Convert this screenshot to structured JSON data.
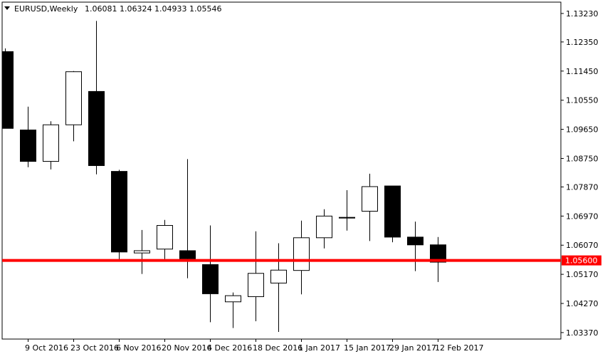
{
  "header": {
    "symbol_label": "EURUSD,Weekly",
    "ohlc_label": "1.06081 1.06324 1.04933 1.05546"
  },
  "colors": {
    "background": "#ffffff",
    "candle_bull_fill": "#ffffff",
    "candle_bear_fill": "#000000",
    "candle_outline": "#000000",
    "level_line": "#ff0000",
    "level_badge_bg": "#ff0000",
    "level_badge_text": "#ffffff",
    "axis_text": "#000000"
  },
  "chart_data": {
    "type": "candlestick",
    "title": "EURUSD,Weekly",
    "ohlc_readout": "1.06081 1.06324 1.04933 1.05546",
    "ylim": [
      1.0317,
      1.1358
    ],
    "y_ticks": [
      "1.13230",
      "1.12350",
      "1.11450",
      "1.10550",
      "1.09650",
      "1.08750",
      "1.07870",
      "1.06970",
      "1.06070",
      "1.05170",
      "1.04270",
      "1.03370"
    ],
    "x_ticks": [
      "9 Oct 2016",
      "23 Oct 2016",
      "6 Nov 2016",
      "20 Nov 2016",
      "4 Dec 2016",
      "18 Dec 2016",
      "1 Jan 2017",
      "15 Jan 2017",
      "29 Jan 2017",
      "12 Feb 2017"
    ],
    "grid": false,
    "horizontal_line": {
      "value": 1.056,
      "label": "1.05600"
    },
    "candles": [
      {
        "date": "2 Oct 2016",
        "open": 1.1205,
        "high": 1.1215,
        "low": 1.0968,
        "close": 1.0968
      },
      {
        "date": "9 Oct 2016",
        "open": 1.0963,
        "high": 1.1035,
        "low": 1.0848,
        "close": 1.0866
      },
      {
        "date": "16 Oct 2016",
        "open": 1.0866,
        "high": 1.099,
        "low": 1.0841,
        "close": 1.0979
      },
      {
        "date": "23 Oct 2016",
        "open": 1.0979,
        "high": 1.1145,
        "low": 1.0928,
        "close": 1.1143
      },
      {
        "date": "30 Oct 2016",
        "open": 1.1082,
        "high": 1.13,
        "low": 1.0826,
        "close": 1.0853
      },
      {
        "date": "6 Nov 2016",
        "open": 1.0835,
        "high": 1.084,
        "low": 1.0563,
        "close": 1.0586
      },
      {
        "date": "13 Nov 2016",
        "open": 1.0583,
        "high": 1.0654,
        "low": 1.0518,
        "close": 1.059
      },
      {
        "date": "20 Nov 2016",
        "open": 1.0595,
        "high": 1.0685,
        "low": 1.0564,
        "close": 1.0668
      },
      {
        "date": "27 Nov 2016",
        "open": 1.059,
        "high": 1.0873,
        "low": 1.0505,
        "close": 1.0565
      },
      {
        "date": "4 Dec 2016",
        "open": 1.0547,
        "high": 1.0668,
        "low": 1.0369,
        "close": 1.0457
      },
      {
        "date": "11 Dec 2016",
        "open": 1.0432,
        "high": 1.0461,
        "low": 1.0351,
        "close": 1.0451
      },
      {
        "date": "18 Dec 2016",
        "open": 1.0448,
        "high": 1.065,
        "low": 1.0372,
        "close": 1.052
      },
      {
        "date": "25 Dec 2016",
        "open": 1.049,
        "high": 1.0613,
        "low": 1.0339,
        "close": 1.053
      },
      {
        "date": "1 Jan 2017",
        "open": 1.0529,
        "high": 1.0683,
        "low": 1.0455,
        "close": 1.063
      },
      {
        "date": "8 Jan 2017",
        "open": 1.063,
        "high": 1.0718,
        "low": 1.0597,
        "close": 1.0697
      },
      {
        "date": "15 Jan 2017",
        "open": 1.0693,
        "high": 1.0777,
        "low": 1.0652,
        "close": 1.0693
      },
      {
        "date": "22 Jan 2017",
        "open": 1.0712,
        "high": 1.0828,
        "low": 1.062,
        "close": 1.0788
      },
      {
        "date": "29 Jan 2017",
        "open": 1.079,
        "high": 1.079,
        "low": 1.0616,
        "close": 1.0632
      },
      {
        "date": "5 Feb 2017",
        "open": 1.0632,
        "high": 1.068,
        "low": 1.0527,
        "close": 1.0608
      },
      {
        "date": "12 Feb 2017",
        "open": 1.06081,
        "high": 1.06324,
        "low": 1.04933,
        "close": 1.05546
      }
    ]
  }
}
